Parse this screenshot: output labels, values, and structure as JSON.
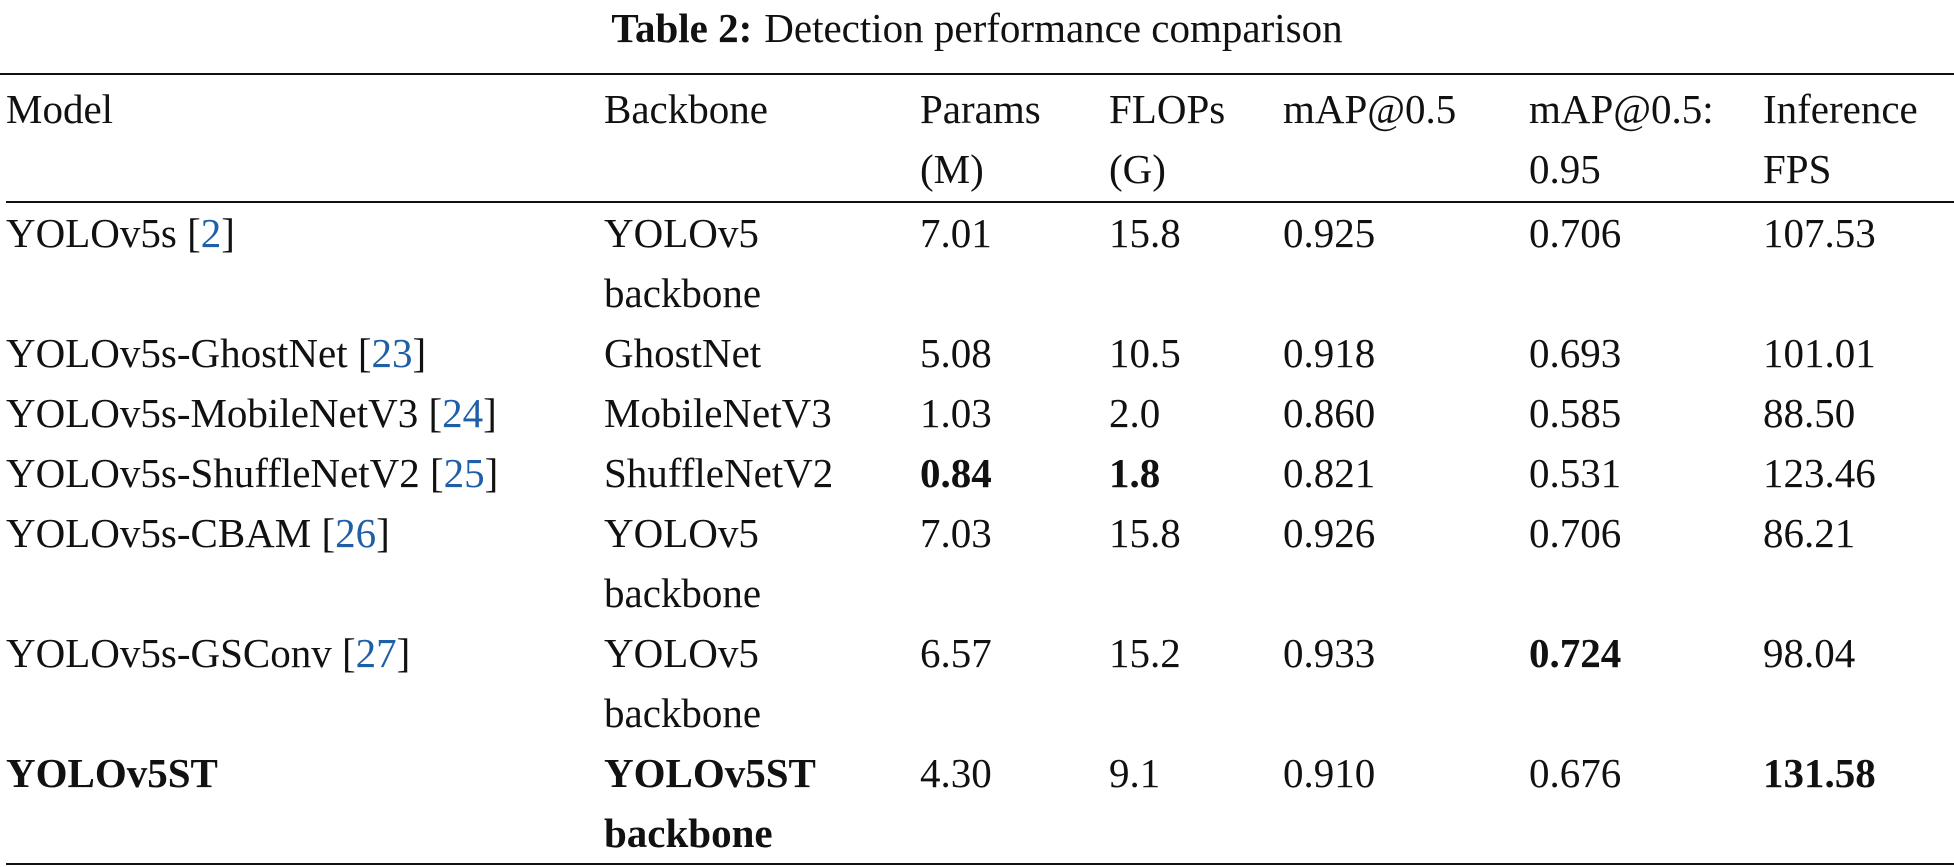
{
  "caption": {
    "label": "Table 2:",
    "text": "Detection performance comparison"
  },
  "table": {
    "header": [
      "Model",
      "Backbone",
      "Params (M)",
      "FLOPs (G)",
      "mAP@0.5",
      "mAP@0.5: 0.95",
      "Inference FPS"
    ],
    "rows": [
      [
        [
          {
            "text": "YOLOv5s ["
          },
          {
            "text": "2",
            "link": true
          },
          {
            "text": "]"
          }
        ],
        "YOLOv5 backbone",
        "7.01",
        "15.8",
        "0.925",
        "0.706",
        "107.53"
      ],
      [
        [
          {
            "text": "YOLOv5s-GhostNet ["
          },
          {
            "text": "23",
            "link": true
          },
          {
            "text": "]"
          }
        ],
        "GhostNet",
        "5.08",
        "10.5",
        "0.918",
        "0.693",
        "101.01"
      ],
      [
        [
          {
            "text": "YOLOv5s-MobileNetV3 ["
          },
          {
            "text": "24",
            "link": true
          },
          {
            "text": "]"
          }
        ],
        "MobileNetV3",
        "1.03",
        "2.0",
        "0.860",
        "0.585",
        "88.50"
      ],
      [
        [
          {
            "text": "YOLOv5s-ShuffleNetV2 ["
          },
          {
            "text": "25",
            "link": true
          },
          {
            "text": "]"
          }
        ],
        "ShuffleNetV2",
        [
          {
            "text": "0.84",
            "bold": true
          }
        ],
        [
          {
            "text": "1.8",
            "bold": true
          }
        ],
        "0.821",
        "0.531",
        "123.46"
      ],
      [
        [
          {
            "text": "YOLOv5s-CBAM ["
          },
          {
            "text": "26",
            "link": true
          },
          {
            "text": "]"
          }
        ],
        "YOLOv5 backbone",
        "7.03",
        "15.8",
        "0.926",
        "0.706",
        "86.21"
      ],
      [
        [
          {
            "text": "YOLOv5s-GSConv ["
          },
          {
            "text": "27",
            "link": true
          },
          {
            "text": "]"
          }
        ],
        "YOLOv5 backbone",
        "6.57",
        "15.2",
        "0.933",
        [
          {
            "text": "0.724",
            "bold": true
          }
        ],
        "98.04"
      ],
      [
        [
          {
            "text": "YOLOv5ST",
            "bold": true
          }
        ],
        [
          {
            "text": "YOLOv5ST backbone",
            "bold": true
          }
        ],
        "4.30",
        "9.1",
        "0.910",
        "0.676",
        [
          {
            "text": "131.58",
            "bold": true
          }
        ]
      ]
    ]
  }
}
